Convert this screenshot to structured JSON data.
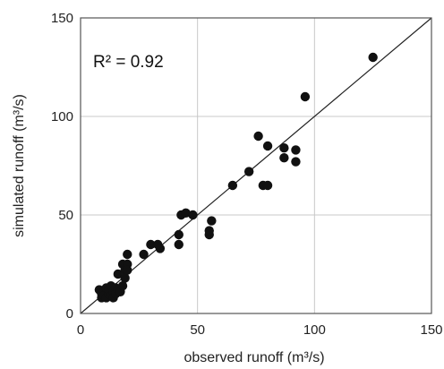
{
  "chart_data": {
    "type": "scatter",
    "title": "",
    "xlabel": "observed runoff (m³/s)",
    "ylabel": "simulated runoff (m³/s)",
    "xlim": [
      0,
      150
    ],
    "ylim": [
      0,
      150
    ],
    "xticks": [
      "0",
      "50",
      "100",
      "150"
    ],
    "yticks": [
      "0",
      "50",
      "100",
      "150"
    ],
    "grid": true,
    "reference_line": "1:1",
    "annotation": "R² = 0.92",
    "colors": {
      "points": "#111111",
      "grid": "#c8c8c8",
      "line": "#222222"
    },
    "points": [
      [
        8,
        12
      ],
      [
        9,
        10
      ],
      [
        9,
        8
      ],
      [
        10,
        11
      ],
      [
        10,
        9
      ],
      [
        11,
        13
      ],
      [
        11,
        8
      ],
      [
        12,
        10
      ],
      [
        12,
        12
      ],
      [
        13,
        9
      ],
      [
        13,
        14
      ],
      [
        14,
        11
      ],
      [
        14,
        8
      ],
      [
        15,
        13
      ],
      [
        15,
        10
      ],
      [
        16,
        12
      ],
      [
        16,
        20
      ],
      [
        17,
        11
      ],
      [
        18,
        14
      ],
      [
        18,
        25
      ],
      [
        19,
        22
      ],
      [
        19,
        18
      ],
      [
        20,
        30
      ],
      [
        20,
        25
      ],
      [
        20,
        22
      ],
      [
        27,
        30
      ],
      [
        30,
        35
      ],
      [
        33,
        35
      ],
      [
        34,
        33
      ],
      [
        42,
        40
      ],
      [
        42,
        35
      ],
      [
        43,
        50
      ],
      [
        45,
        51
      ],
      [
        48,
        50
      ],
      [
        55,
        40
      ],
      [
        55,
        42
      ],
      [
        56,
        47
      ],
      [
        65,
        65
      ],
      [
        72,
        72
      ],
      [
        76,
        90
      ],
      [
        78,
        65
      ],
      [
        80,
        85
      ],
      [
        80,
        65
      ],
      [
        87,
        84
      ],
      [
        87,
        79
      ],
      [
        92,
        83
      ],
      [
        92,
        77
      ],
      [
        96,
        110
      ],
      [
        125,
        130
      ]
    ]
  }
}
